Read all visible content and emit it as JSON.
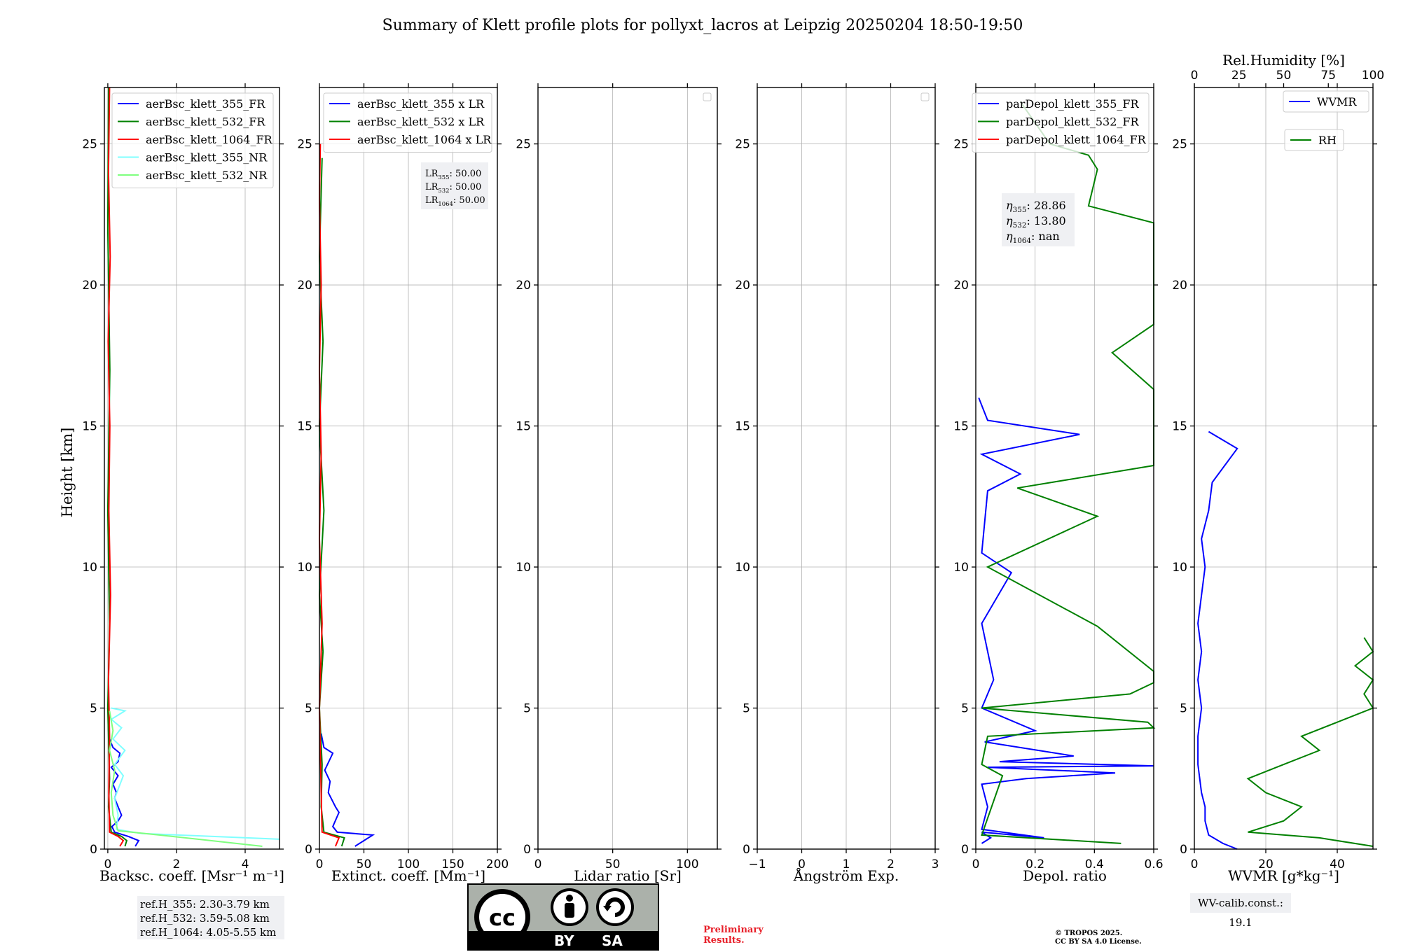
{
  "figure": {
    "title": "Summary of Klett profile plots for pollyxt_lacros at Leipzig 20250204 18:50-19:50",
    "ylabel": "Height [km]"
  },
  "info": {
    "ref_heights": [
      "ref.H_355: 2.30-3.79 km",
      "ref.H_532: 3.59-5.08 km",
      "ref.H_1064: 4.05-5.55 km"
    ],
    "lidar_ratios": [
      {
        "sym": "LR",
        "sub": "355",
        "val": ": 50.00"
      },
      {
        "sym": "LR",
        "sub": "532",
        "val": ": 50.00"
      },
      {
        "sym": "LR",
        "sub": "1064",
        "val": ": 50.00"
      }
    ],
    "eta": [
      {
        "sym": "η",
        "sub": "355",
        "val": ": 28.86"
      },
      {
        "sym": "η",
        "sub": "532",
        "val": ": 13.80"
      },
      {
        "sym": "η",
        "sub": "1064",
        "val": ": nan"
      }
    ],
    "wv_calib": "WV-calib.const.: 19.1",
    "cc_by": "BY",
    "cc_sa": "SA",
    "preliminary": [
      "Preliminary",
      "Results."
    ],
    "copyright": [
      "© TROPOS 2025.",
      "CC BY SA 4.0 License."
    ]
  },
  "colors": {
    "c355": "#0000ff",
    "c532": "#008000",
    "c1064": "#ff0000",
    "c355nr": "#7fffff",
    "c532nr": "#7fff7f",
    "grid": "#b0b0b0"
  },
  "chart_data": [
    {
      "type": "line",
      "id": "bsc",
      "xlabel": "Backsc. coeff. [Msr⁻¹ m⁻¹]",
      "ylabel": "Height [km]",
      "xlim": [
        -0.1,
        5.0
      ],
      "ylim": [
        0,
        27
      ],
      "xticks": [
        0,
        2,
        4
      ],
      "yticks": [
        0,
        5,
        10,
        15,
        20,
        25
      ],
      "grid": true,
      "legend": "top-right",
      "series": [
        {
          "name": "aerBsc_klett_355_FR",
          "color": "#0000ff",
          "points": [
            [
              0.8,
              0.1
            ],
            [
              0.9,
              0.3
            ],
            [
              0.6,
              0.45
            ],
            [
              0.2,
              0.6
            ],
            [
              0.12,
              0.8
            ],
            [
              0.3,
              1.0
            ],
            [
              0.4,
              1.2
            ],
            [
              0.3,
              1.5
            ],
            [
              0.2,
              1.8
            ],
            [
              0.25,
              2.0
            ],
            [
              0.15,
              2.3
            ],
            [
              0.3,
              2.6
            ],
            [
              0.1,
              2.9
            ],
            [
              0.3,
              3.1
            ],
            [
              0.35,
              3.4
            ],
            [
              0.15,
              3.6
            ],
            [
              0.05,
              3.9
            ],
            [
              0.02,
              4.2
            ],
            [
              0.01,
              5.0
            ]
          ]
        },
        {
          "name": "aerBsc_klett_532_FR",
          "color": "#008000",
          "points": [
            [
              0.5,
              0.1
            ],
            [
              0.55,
              0.3
            ],
            [
              0.4,
              0.45
            ],
            [
              0.1,
              0.6
            ],
            [
              0.02,
              1.5
            ],
            [
              0.05,
              2.5
            ],
            [
              0.03,
              3.5
            ],
            [
              0.0,
              5.0
            ],
            [
              0.05,
              8
            ],
            [
              0.0,
              12
            ],
            [
              0.06,
              17
            ],
            [
              0.0,
              22
            ],
            [
              0.02,
              27
            ]
          ]
        },
        {
          "name": "aerBsc_klett_1064_FR",
          "color": "#ff0000",
          "points": [
            [
              0.35,
              0.1
            ],
            [
              0.45,
              0.3
            ],
            [
              0.3,
              0.45
            ],
            [
              0.05,
              0.6
            ],
            [
              0.03,
              2
            ],
            [
              0.05,
              4
            ],
            [
              0.02,
              6
            ],
            [
              0.08,
              9
            ],
            [
              0.03,
              12
            ],
            [
              0.06,
              15
            ],
            [
              0.01,
              18
            ],
            [
              0.07,
              21
            ],
            [
              0.02,
              24
            ],
            [
              0.05,
              27
            ]
          ]
        },
        {
          "name": "aerBsc_klett_355_NR",
          "color": "#7fffff",
          "points": [
            [
              5.0,
              0.35
            ],
            [
              2.5,
              0.48
            ],
            [
              1.0,
              0.55
            ],
            [
              0.25,
              0.7
            ],
            [
              0.3,
              1.2
            ],
            [
              0.2,
              1.8
            ],
            [
              0.45,
              2.6
            ],
            [
              0.2,
              3.0
            ],
            [
              0.5,
              3.5
            ],
            [
              0.15,
              3.9
            ],
            [
              0.4,
              4.3
            ],
            [
              0.1,
              4.6
            ],
            [
              0.5,
              4.9
            ],
            [
              0.1,
              5.0
            ]
          ]
        },
        {
          "name": "aerBsc_klett_532_NR",
          "color": "#7fff7f",
          "points": [
            [
              4.5,
              0.1
            ],
            [
              3.0,
              0.3
            ],
            [
              1.5,
              0.5
            ],
            [
              0.3,
              0.65
            ],
            [
              0.15,
              1.2
            ],
            [
              0.1,
              2.0
            ],
            [
              0.2,
              2.8
            ],
            [
              0.05,
              3.5
            ],
            [
              0.15,
              4.2
            ],
            [
              0.05,
              4.9
            ]
          ]
        }
      ]
    },
    {
      "type": "line",
      "id": "ext",
      "xlabel": "Extinct. coeff. [Mm⁻¹]",
      "xlim": [
        0,
        200
      ],
      "ylim": [
        0,
        27
      ],
      "xticks": [
        0,
        50,
        100,
        150,
        200
      ],
      "yticks": [
        0,
        5,
        10,
        15,
        20,
        25
      ],
      "grid": true,
      "legend": "top-right",
      "series": [
        {
          "name": "aerBsc_klett_355 x LR",
          "color": "#0000ff",
          "points": [
            [
              40,
              0.1
            ],
            [
              60,
              0.5
            ],
            [
              20,
              0.6
            ],
            [
              15,
              0.8
            ],
            [
              22,
              1.3
            ],
            [
              18,
              1.5
            ],
            [
              10,
              2.0
            ],
            [
              12,
              2.4
            ],
            [
              6,
              2.8
            ],
            [
              15,
              3.4
            ],
            [
              5,
              3.6
            ],
            [
              2,
              4.1
            ]
          ]
        },
        {
          "name": "aerBsc_klett_532 x LR",
          "color": "#008000",
          "points": [
            [
              25,
              0.1
            ],
            [
              28,
              0.4
            ],
            [
              5,
              0.6
            ],
            [
              2,
              1.5
            ],
            [
              3,
              3
            ],
            [
              0,
              5
            ],
            [
              4,
              7
            ],
            [
              0,
              9
            ],
            [
              5,
              12
            ],
            [
              0,
              15
            ],
            [
              4,
              18
            ],
            [
              0,
              21
            ],
            [
              3,
              24.5
            ]
          ]
        },
        {
          "name": "aerBsc_klett_1064 x LR",
          "color": "#ff0000",
          "points": [
            [
              18,
              0.1
            ],
            [
              22,
              0.4
            ],
            [
              3,
              0.6
            ],
            [
              2,
              2
            ],
            [
              0,
              5
            ],
            [
              3,
              8
            ],
            [
              0,
              11
            ],
            [
              2,
              14
            ],
            [
              0,
              17
            ],
            [
              2,
              20
            ],
            [
              0,
              23
            ],
            [
              1,
              25
            ]
          ]
        }
      ]
    },
    {
      "type": "line",
      "id": "lr",
      "xlabel": "Lidar ratio [Sr]",
      "xlim": [
        0,
        120
      ],
      "ylim": [
        0,
        27
      ],
      "xticks": [
        0,
        50,
        100
      ],
      "yticks": [
        0,
        5,
        10,
        15,
        20,
        25
      ],
      "grid": true,
      "legend": "top-right",
      "series": []
    },
    {
      "type": "line",
      "id": "ang",
      "xlabel": "Ångström Exp.",
      "xlim": [
        -1,
        3
      ],
      "ylim": [
        0,
        27
      ],
      "xticks": [
        -1,
        0,
        1,
        2,
        3
      ],
      "yticks": [
        0,
        5,
        10,
        15,
        20,
        25
      ],
      "grid": true,
      "legend": "top-right",
      "series": []
    },
    {
      "type": "line",
      "id": "depol",
      "xlabel": "Depol. ratio",
      "xlim": [
        0,
        0.6
      ],
      "ylim": [
        0,
        27
      ],
      "xticks": [
        0,
        0.2,
        0.4,
        0.6
      ],
      "yticks": [
        0,
        5,
        10,
        15,
        20,
        25
      ],
      "grid": true,
      "legend": "top-right",
      "series": [
        {
          "name": "parDepol_klett_355_FR",
          "color": "#0000ff",
          "points": [
            [
              0.02,
              0.2
            ],
            [
              0.05,
              0.4
            ],
            [
              0.02,
              0.6
            ],
            [
              0.23,
              0.4
            ],
            [
              0.02,
              0.7
            ],
            [
              0.04,
              1.5
            ],
            [
              0.02,
              2.3
            ],
            [
              0.17,
              2.5
            ],
            [
              0.47,
              2.7
            ],
            [
              0.04,
              2.9
            ],
            [
              0.6,
              2.95
            ],
            [
              0.08,
              3.1
            ],
            [
              0.33,
              3.3
            ],
            [
              0.03,
              3.8
            ],
            [
              0.2,
              4.2
            ],
            [
              0.02,
              5
            ],
            [
              0.06,
              6
            ],
            [
              0.02,
              8
            ],
            [
              0.12,
              9.8
            ],
            [
              0.02,
              10.5
            ],
            [
              0.04,
              12.7
            ],
            [
              0.15,
              13.3
            ],
            [
              0.02,
              14
            ],
            [
              0.35,
              14.7
            ],
            [
              0.04,
              15.2
            ],
            [
              0.01,
              16
            ]
          ]
        },
        {
          "name": "parDepol_klett_532_FR",
          "color": "#008000",
          "points": [
            [
              0.49,
              0.2
            ],
            [
              0.02,
              0.5
            ],
            [
              0.09,
              2.6
            ],
            [
              0.02,
              3.0
            ],
            [
              0.03,
              3.5
            ],
            [
              0.04,
              4.0
            ],
            [
              0.6,
              4.3
            ],
            [
              0.58,
              4.5
            ],
            [
              0.02,
              5.0
            ],
            [
              0.52,
              5.5
            ],
            [
              0.6,
              5.9
            ],
            [
              0.6,
              6.3
            ],
            [
              0.41,
              7.9
            ],
            [
              0.04,
              10
            ],
            [
              0.41,
              11.8
            ],
            [
              0.14,
              12.8
            ],
            [
              0.6,
              13.6
            ],
            [
              0.6,
              14.4
            ],
            [
              0.6,
              15.1
            ],
            [
              0.6,
              16.3
            ],
            [
              0.46,
              17.6
            ],
            [
              0.6,
              18.6
            ],
            [
              0.6,
              19.8
            ],
            [
              0.6,
              20.4
            ],
            [
              0.6,
              20.6
            ],
            [
              0.6,
              21.6
            ],
            [
              0.6,
              22.2
            ],
            [
              0.38,
              22.8
            ],
            [
              0.41,
              24.1
            ],
            [
              0.38,
              24.6
            ],
            [
              0.25,
              25.0
            ],
            [
              0.15,
              26.5
            ]
          ]
        },
        {
          "name": "parDepol_klett_1064_FR",
          "color": "#ff0000",
          "points": []
        }
      ]
    },
    {
      "type": "line",
      "id": "wv",
      "xlabel": "WVMR [g*kg⁻¹]",
      "x2label": "Rel.Humidity [%]",
      "xlim": [
        0,
        50
      ],
      "x2lim": [
        0,
        100
      ],
      "ylim": [
        0,
        27
      ],
      "xticks": [
        0,
        20,
        40
      ],
      "x2ticks": [
        0,
        25,
        50,
        75,
        100
      ],
      "yticks": [
        0,
        5,
        10,
        15,
        20,
        25
      ],
      "grid": true,
      "legend": "top-right",
      "series": [
        {
          "name": "WVMR",
          "color": "#0000ff",
          "axis": "x",
          "points": [
            [
              12,
              0
            ],
            [
              8,
              0.2
            ],
            [
              4,
              0.5
            ],
            [
              3,
              1.0
            ],
            [
              3,
              1.5
            ],
            [
              2,
              2.0
            ],
            [
              1,
              3.0
            ],
            [
              1,
              4.0
            ],
            [
              2,
              5.0
            ],
            [
              1,
              6.0
            ],
            [
              2,
              7.0
            ],
            [
              1,
              8.0
            ],
            [
              2,
              9.0
            ],
            [
              3,
              10
            ],
            [
              2,
              11
            ],
            [
              4,
              12
            ],
            [
              5,
              13
            ],
            [
              12,
              14.2
            ],
            [
              4,
              14.8
            ]
          ]
        },
        {
          "name": "RH",
          "color": "#008000",
          "axis": "x2",
          "points": [
            [
              100,
              0.1
            ],
            [
              70,
              0.4
            ],
            [
              30,
              0.6
            ],
            [
              50,
              1.0
            ],
            [
              60,
              1.5
            ],
            [
              40,
              2.0
            ],
            [
              30,
              2.5
            ],
            [
              50,
              3.0
            ],
            [
              70,
              3.5
            ],
            [
              60,
              4.0
            ],
            [
              80,
              4.5
            ],
            [
              100,
              5.0
            ],
            [
              95,
              5.5
            ],
            [
              100,
              6.0
            ],
            [
              90,
              6.5
            ],
            [
              100,
              7.0
            ],
            [
              95,
              7.5
            ]
          ]
        }
      ]
    }
  ]
}
